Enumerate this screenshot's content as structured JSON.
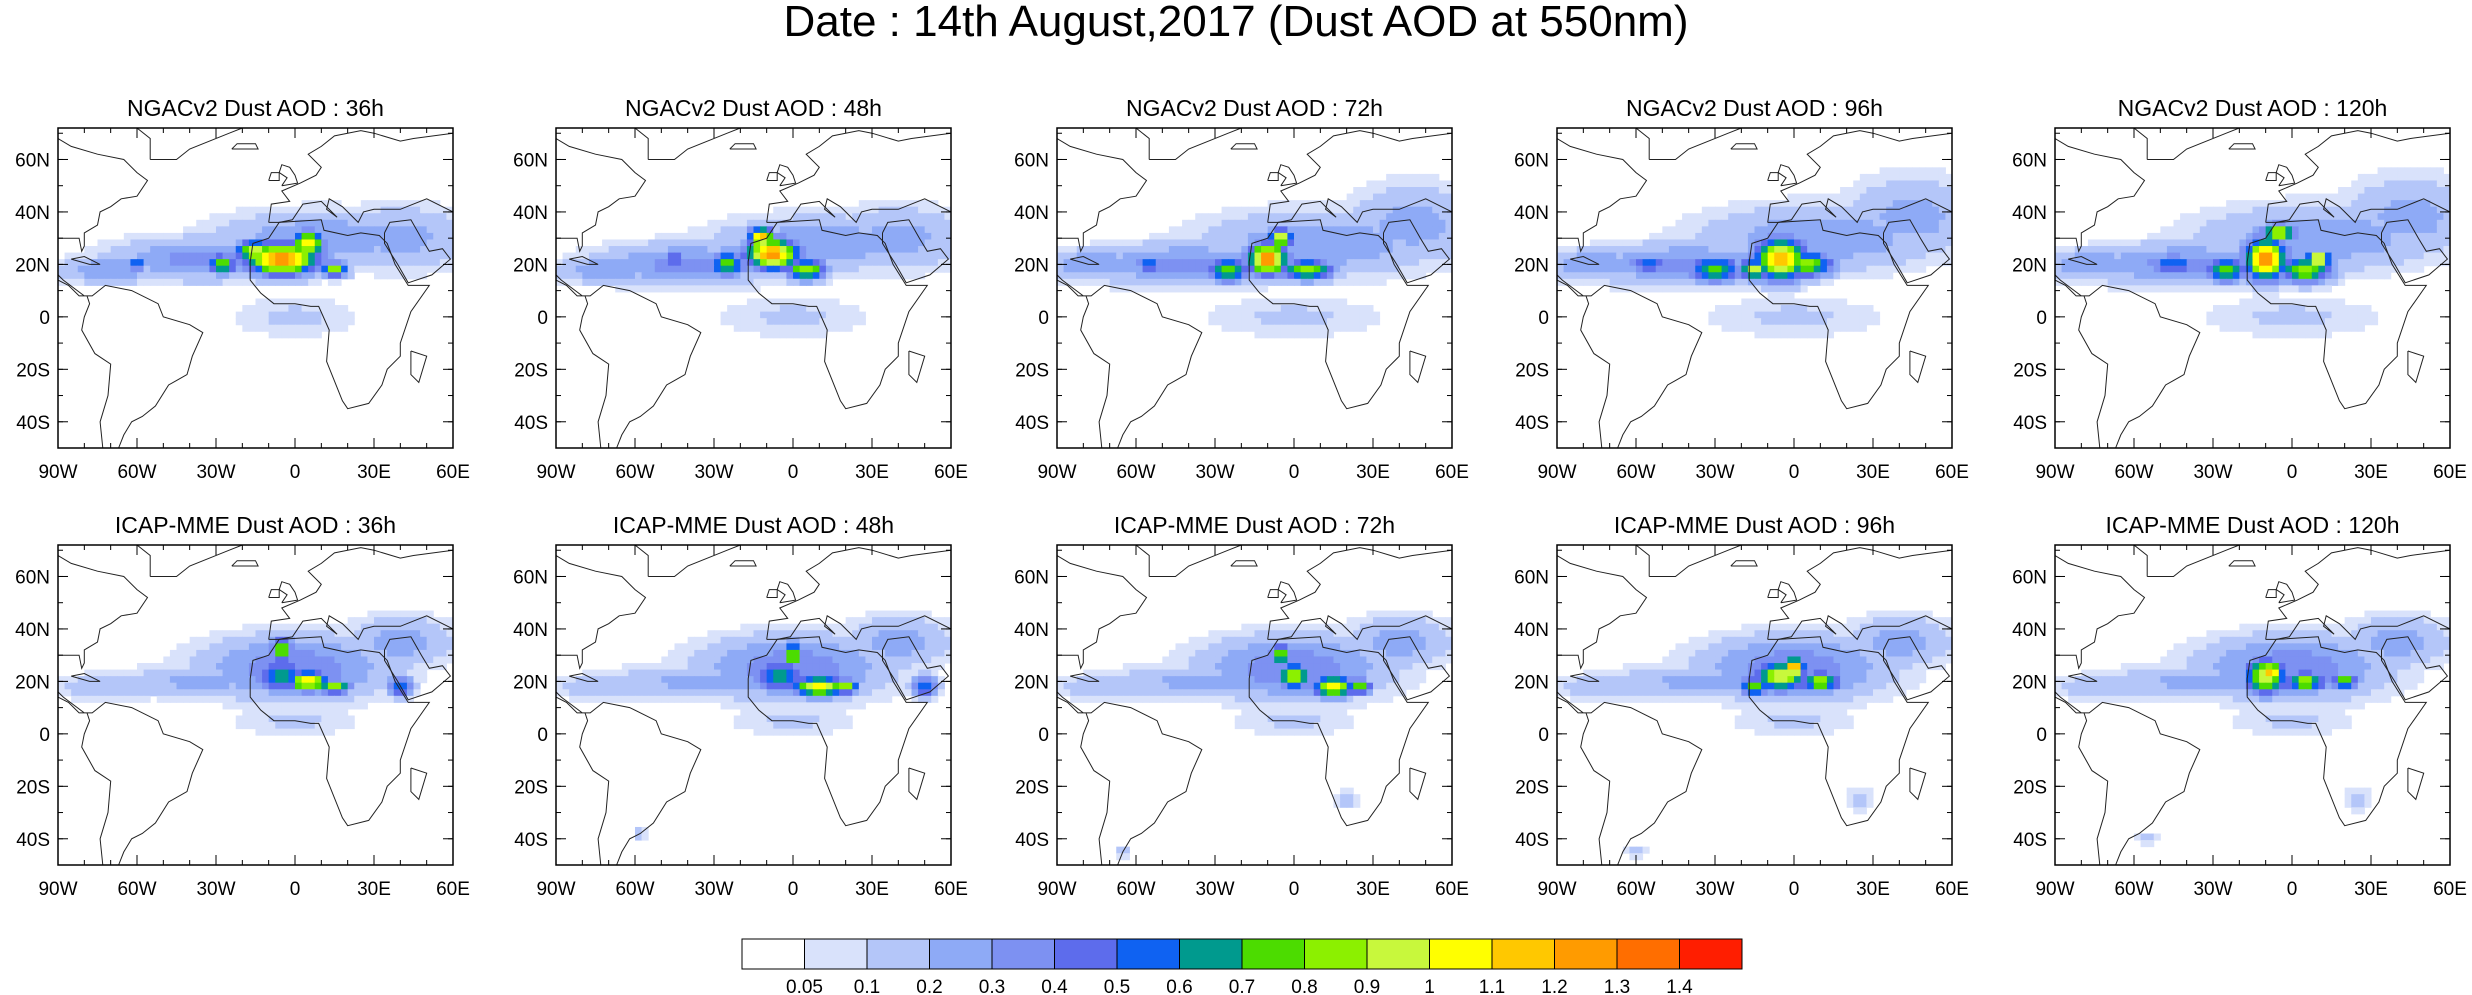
{
  "title": "Date : 14th August,2017 (Dust AOD at 550nm)",
  "panels": [
    {
      "title": "NGACv2 Dust AOD : 36h",
      "model": "NGACv2",
      "lead": "36h",
      "blobs": [
        [
          -5,
          22,
          14,
          6,
          1.3
        ],
        [
          -15,
          25,
          8,
          4,
          1.0
        ],
        [
          5,
          28,
          6,
          5,
          1.1
        ],
        [
          15,
          18,
          5,
          3,
          0.9
        ],
        [
          -28,
          20,
          6,
          4,
          0.8
        ],
        [
          -60,
          20,
          4,
          3,
          0.6
        ],
        [
          -35,
          22,
          35,
          8,
          0.35
        ],
        [
          10,
          30,
          40,
          10,
          0.3
        ],
        [
          40,
          30,
          25,
          12,
          0.25
        ],
        [
          -70,
          18,
          20,
          5,
          0.3
        ],
        [
          0,
          0,
          25,
          8,
          0.12
        ]
      ]
    },
    {
      "title": "NGACv2 Dust AOD : 48h",
      "model": "NGACv2",
      "lead": "48h",
      "blobs": [
        [
          -8,
          24,
          10,
          6,
          1.3
        ],
        [
          -12,
          30,
          5,
          4,
          1.2
        ],
        [
          5,
          18,
          8,
          4,
          0.9
        ],
        [
          -25,
          20,
          7,
          5,
          0.8
        ],
        [
          -45,
          22,
          4,
          3,
          0.6
        ],
        [
          -40,
          20,
          35,
          8,
          0.35
        ],
        [
          10,
          28,
          40,
          10,
          0.3
        ],
        [
          40,
          30,
          25,
          12,
          0.25
        ],
        [
          -70,
          18,
          20,
          5,
          0.3
        ],
        [
          0,
          0,
          30,
          8,
          0.12
        ]
      ]
    },
    {
      "title": "NGACv2 Dust AOD : 72h",
      "model": "NGACv2",
      "lead": "72h",
      "blobs": [
        [
          -10,
          22,
          8,
          6,
          1.3
        ],
        [
          -5,
          30,
          5,
          4,
          1.0
        ],
        [
          5,
          18,
          10,
          4,
          0.9
        ],
        [
          -25,
          18,
          8,
          5,
          0.8
        ],
        [
          -55,
          20,
          6,
          3,
          0.6
        ],
        [
          -40,
          20,
          40,
          8,
          0.35
        ],
        [
          10,
          28,
          45,
          12,
          0.3
        ],
        [
          45,
          35,
          25,
          15,
          0.25
        ],
        [
          -75,
          20,
          20,
          6,
          0.3
        ],
        [
          0,
          0,
          35,
          8,
          0.12
        ]
      ]
    },
    {
      "title": "NGACv2 Dust AOD : 96h",
      "model": "NGACv2",
      "lead": "96h",
      "blobs": [
        [
          -5,
          22,
          10,
          8,
          1.2
        ],
        [
          -15,
          18,
          6,
          4,
          1.0
        ],
        [
          5,
          20,
          10,
          5,
          0.9
        ],
        [
          -30,
          18,
          10,
          5,
          0.8
        ],
        [
          -55,
          20,
          10,
          3,
          0.6
        ],
        [
          -40,
          20,
          40,
          8,
          0.35
        ],
        [
          10,
          30,
          45,
          12,
          0.3
        ],
        [
          45,
          38,
          25,
          15,
          0.25
        ],
        [
          -75,
          20,
          20,
          6,
          0.3
        ],
        [
          0,
          0,
          35,
          8,
          0.12
        ]
      ]
    },
    {
      "title": "NGACv2 Dust AOD : 120h",
      "model": "NGACv2",
      "lead": "120h",
      "blobs": [
        [
          -10,
          22,
          8,
          8,
          1.3
        ],
        [
          10,
          22,
          5,
          3,
          1.2
        ],
        [
          -5,
          32,
          6,
          4,
          1.0
        ],
        [
          5,
          18,
          10,
          5,
          0.9
        ],
        [
          -25,
          18,
          8,
          5,
          0.8
        ],
        [
          -45,
          20,
          10,
          4,
          0.6
        ],
        [
          -40,
          20,
          40,
          8,
          0.35
        ],
        [
          10,
          30,
          45,
          12,
          0.3
        ],
        [
          45,
          38,
          25,
          15,
          0.25
        ],
        [
          -75,
          20,
          20,
          6,
          0.3
        ],
        [
          0,
          0,
          35,
          8,
          0.12
        ]
      ]
    },
    {
      "title": "ICAP-MME Dust AOD : 36h",
      "model": "ICAP-MME",
      "lead": "36h",
      "blobs": [
        [
          5,
          20,
          8,
          4,
          1.1
        ],
        [
          -5,
          32,
          4,
          5,
          0.9
        ],
        [
          15,
          18,
          6,
          3,
          0.9
        ],
        [
          -5,
          22,
          10,
          6,
          0.7
        ],
        [
          40,
          18,
          5,
          4,
          0.6
        ],
        [
          0,
          25,
          35,
          12,
          0.4
        ],
        [
          -35,
          20,
          30,
          6,
          0.25
        ],
        [
          -70,
          18,
          20,
          5,
          0.2
        ],
        [
          40,
          35,
          20,
          10,
          0.25
        ],
        [
          0,
          5,
          25,
          6,
          0.12
        ]
      ]
    },
    {
      "title": "ICAP-MME Dust AOD : 48h",
      "model": "ICAP-MME",
      "lead": "48h",
      "blobs": [
        [
          10,
          18,
          10,
          4,
          1.1
        ],
        [
          0,
          30,
          4,
          5,
          0.9
        ],
        [
          20,
          18,
          5,
          3,
          0.9
        ],
        [
          -5,
          22,
          10,
          6,
          0.7
        ],
        [
          50,
          18,
          5,
          4,
          0.6
        ],
        [
          0,
          25,
          35,
          12,
          0.4
        ],
        [
          -35,
          20,
          35,
          6,
          0.25
        ],
        [
          -70,
          18,
          20,
          5,
          0.2
        ],
        [
          40,
          35,
          20,
          10,
          0.25
        ],
        [
          0,
          5,
          25,
          6,
          0.12
        ],
        [
          -58,
          -38,
          3,
          3,
          0.15
        ]
      ]
    },
    {
      "title": "ICAP-MME Dust AOD : 72h",
      "model": "ICAP-MME",
      "lead": "72h",
      "blobs": [
        [
          15,
          18,
          8,
          4,
          1.1
        ],
        [
          0,
          22,
          6,
          5,
          1.0
        ],
        [
          -5,
          30,
          4,
          4,
          0.9
        ],
        [
          25,
          18,
          5,
          3,
          0.8
        ],
        [
          0,
          25,
          35,
          12,
          0.4
        ],
        [
          -35,
          20,
          35,
          6,
          0.25
        ],
        [
          -70,
          18,
          20,
          5,
          0.2
        ],
        [
          40,
          35,
          20,
          10,
          0.25
        ],
        [
          0,
          5,
          25,
          6,
          0.12
        ],
        [
          20,
          -25,
          4,
          4,
          0.15
        ],
        [
          -65,
          -45,
          3,
          3,
          0.15
        ]
      ]
    },
    {
      "title": "ICAP-MME Dust AOD : 96h",
      "model": "ICAP-MME",
      "lead": "96h",
      "blobs": [
        [
          -5,
          22,
          10,
          6,
          1.0
        ],
        [
          0,
          25,
          4,
          4,
          1.3
        ],
        [
          10,
          20,
          8,
          4,
          0.9
        ],
        [
          -15,
          18,
          6,
          4,
          0.8
        ],
        [
          0,
          25,
          35,
          12,
          0.4
        ],
        [
          -35,
          20,
          35,
          6,
          0.25
        ],
        [
          -70,
          18,
          20,
          5,
          0.2
        ],
        [
          40,
          35,
          20,
          10,
          0.25
        ],
        [
          0,
          5,
          25,
          6,
          0.12
        ],
        [
          25,
          -25,
          5,
          5,
          0.15
        ],
        [
          -60,
          -45,
          4,
          3,
          0.15
        ]
      ]
    },
    {
      "title": "ICAP-MME Dust AOD : 120h",
      "model": "ICAP-MME",
      "lead": "120h",
      "blobs": [
        [
          -10,
          22,
          8,
          7,
          1.0
        ],
        [
          -8,
          24,
          4,
          3,
          1.3
        ],
        [
          5,
          20,
          8,
          4,
          0.9
        ],
        [
          20,
          20,
          5,
          3,
          0.8
        ],
        [
          0,
          25,
          35,
          12,
          0.4
        ],
        [
          -35,
          20,
          35,
          6,
          0.25
        ],
        [
          -70,
          18,
          20,
          5,
          0.2
        ],
        [
          40,
          35,
          20,
          10,
          0.25
        ],
        [
          0,
          5,
          25,
          6,
          0.12
        ],
        [
          25,
          -25,
          5,
          5,
          0.15
        ],
        [
          -55,
          -40,
          4,
          3,
          0.15
        ]
      ]
    }
  ],
  "map_axes": {
    "lon_range": [
      -90,
      60
    ],
    "lat_range": [
      -50,
      72
    ],
    "lon_ticks": [
      {
        "v": -90,
        "label": "90W"
      },
      {
        "v": -60,
        "label": "60W"
      },
      {
        "v": -30,
        "label": "30W"
      },
      {
        "v": 0,
        "label": "0"
      },
      {
        "v": 30,
        "label": "30E"
      },
      {
        "v": 60,
        "label": "60E"
      }
    ],
    "lat_ticks": [
      {
        "v": 60,
        "label": "60N"
      },
      {
        "v": 40,
        "label": "40N"
      },
      {
        "v": 20,
        "label": "20N"
      },
      {
        "v": 0,
        "label": "0"
      },
      {
        "v": -20,
        "label": "20S"
      },
      {
        "v": -40,
        "label": "40S"
      }
    ]
  },
  "colorbar": {
    "colors": [
      "#ffffff",
      "#d9e2fb",
      "#b4c6f9",
      "#8eaaf6",
      "#7d91f2",
      "#5d6cec",
      "#0f62f2",
      "#009a8e",
      "#4cdc00",
      "#8cf000",
      "#c8f83c",
      "#ffff00",
      "#ffc800",
      "#ff9b00",
      "#ff6e00",
      "#ff1e00"
    ],
    "labels": [
      "0.05",
      "0.1",
      "0.2",
      "0.3",
      "0.4",
      "0.5",
      "0.6",
      "0.7",
      "0.8",
      "0.9",
      "1",
      "1.1",
      "1.2",
      "1.3",
      "1.4"
    ],
    "levels": [
      0.05,
      0.1,
      0.2,
      0.3,
      0.4,
      0.5,
      0.6,
      0.7,
      0.8,
      0.9,
      1.0,
      1.1,
      1.2,
      1.3,
      1.4
    ]
  }
}
